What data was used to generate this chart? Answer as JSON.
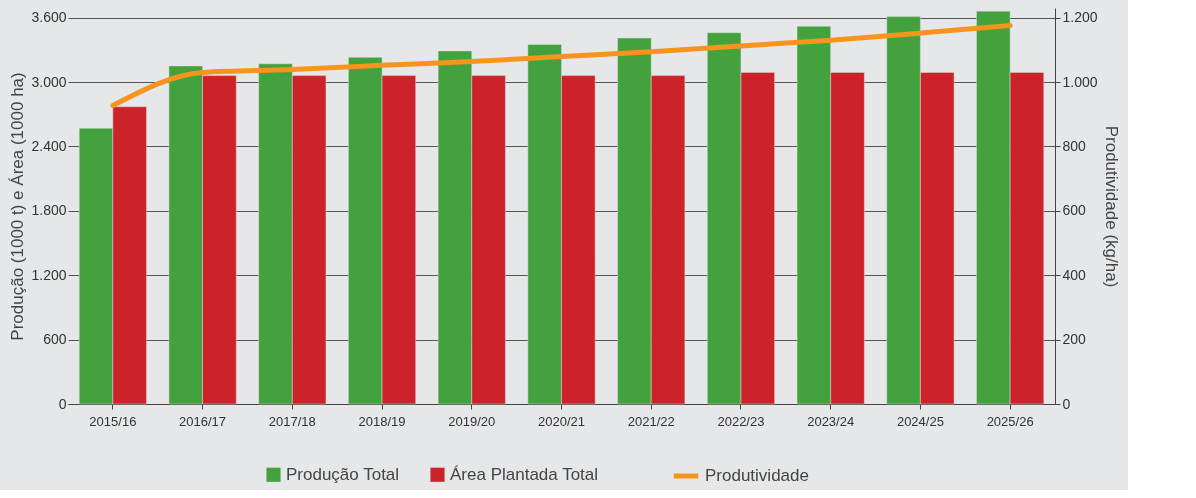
{
  "chart_data": {
    "type": "bar",
    "categories": [
      "2015/16",
      "2016/17",
      "2017/18",
      "2018/19",
      "2019/20",
      "2020/21",
      "2021/22",
      "2022/23",
      "2023/24",
      "2024/25",
      "2025/26"
    ],
    "series": [
      {
        "name": "Produção  Total",
        "color": "#43a23e",
        "values": [
          2570,
          3150,
          3170,
          3230,
          3290,
          3350,
          3410,
          3460,
          3520,
          3610,
          3660
        ]
      },
      {
        "name": "Área Plantada Total",
        "color": "#cc2229",
        "values": [
          2770,
          3060,
          3060,
          3060,
          3060,
          3060,
          3060,
          3090,
          3090,
          3090,
          3090
        ]
      },
      {
        "name": "Produtividade",
        "color": "#f7941d",
        "type": "line",
        "axis": "y2",
        "values": [
          927,
          1030,
          1039,
          1052,
          1064,
          1079,
          1094,
          1112,
          1130,
          1152,
          1176
        ]
      }
    ],
    "ylabel": "Produção (1000 t) e Área (1000 ha)",
    "y2label": "Produtividade (kg/ha)",
    "ylim": [
      0,
      3690
    ],
    "yticks": [
      0,
      600,
      {
        "value": 1200,
        "label": "1.200"
      },
      {
        "value": 1800,
        "label": "1.800"
      },
      {
        "value": 2400,
        "label": "2.400"
      },
      {
        "value": 3000,
        "label": "3.000"
      },
      {
        "value": 3600,
        "label": "3.600"
      }
    ],
    "y2lim": [
      0,
      1230
    ],
    "y2ticks": [
      0,
      200,
      400,
      600,
      800,
      {
        "value": 1000,
        "label": "1.000"
      },
      {
        "value": 1200,
        "label": "1.200"
      }
    ],
    "grid": "y",
    "legend": "bottom"
  }
}
